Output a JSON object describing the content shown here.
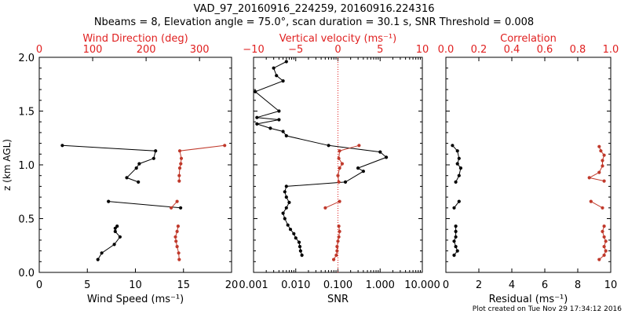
{
  "header": {
    "title_line1": "VAD_97_20160916_224259, 20160916.224316",
    "title_line2": "Nbeams = 8, Elevation angle = 75.0°, scan duration = 30.1 s, SNR Threshold = 0.008"
  },
  "footer": {
    "credit": "Plot created on Tue Nov 29 17:34:12 2016"
  },
  "colors": {
    "black_series": "#000000",
    "red_series": "#c0392b",
    "red_axis": "#e02020"
  },
  "y_axis": {
    "label": "z (km AGL)",
    "range": [
      0,
      2
    ],
    "ticks": [
      "0.0",
      "0.5",
      "1.0",
      "1.5",
      "2.0"
    ]
  },
  "chart_data": [
    {
      "type": "line",
      "bottom_axis": {
        "label": "Wind Speed (ms⁻¹)",
        "range": [
          0,
          20
        ],
        "tick_values": [
          0,
          5,
          10,
          15,
          20
        ],
        "tick_labels": [
          "0",
          "5",
          "10",
          "15",
          "20"
        ]
      },
      "top_axis": {
        "label": "Wind Direction (deg)",
        "range": [
          0,
          360
        ],
        "tick_values": [
          0,
          100,
          200,
          300
        ],
        "tick_labels": [
          "0",
          "100",
          "200",
          "300"
        ]
      },
      "series": [
        {
          "axis": "bottom",
          "color": "black",
          "segments": [
            [
              [
                6.1,
                0.12
              ],
              [
                6.5,
                0.18
              ],
              [
                7.8,
                0.26
              ],
              [
                8.4,
                0.33
              ],
              [
                7.9,
                0.38
              ],
              [
                7.9,
                0.41
              ],
              [
                8.1,
                0.43
              ]
            ],
            [
              [
                7.2,
                0.66
              ],
              [
                14.7,
                0.6
              ]
            ],
            [
              [
                10.3,
                0.84
              ],
              [
                9.1,
                0.88
              ],
              [
                10.1,
                0.97
              ],
              [
                10.4,
                1.01
              ],
              [
                11.9,
                1.06
              ],
              [
                12.1,
                1.13
              ],
              [
                2.4,
                1.18
              ]
            ]
          ]
        },
        {
          "axis": "top",
          "color": "red",
          "segments": [
            [
              [
                262,
                0.12
              ],
              [
                261,
                0.18
              ],
              [
                258,
                0.24
              ],
              [
                256,
                0.29
              ],
              [
                255,
                0.33
              ],
              [
                258,
                0.38
              ],
              [
                260,
                0.43
              ]
            ],
            [
              [
                247,
                0.6
              ],
              [
                258,
                0.66
              ]
            ],
            [
              [
                262,
                0.85
              ],
              [
                262,
                0.9
              ],
              [
                263,
                0.97
              ],
              [
                265,
                1.01
              ],
              [
                266,
                1.06
              ],
              [
                263,
                1.13
              ],
              [
                347,
                1.18
              ]
            ]
          ]
        }
      ]
    },
    {
      "type": "line",
      "bottom_axis": {
        "label": "SNR",
        "scale": "log",
        "range": [
          0.001,
          10
        ],
        "tick_values": [
          0.001,
          0.01,
          0.1,
          1,
          10
        ],
        "tick_labels": [
          "0.001",
          "0.010",
          "0.100",
          "1.000",
          "10.000"
        ]
      },
      "top_axis": {
        "label": "Vertical velocity (ms⁻¹)",
        "range": [
          -10,
          10
        ],
        "tick_values": [
          -10,
          -5,
          0,
          5,
          10
        ],
        "tick_labels": [
          "−10",
          "−5",
          "0",
          "5",
          "10"
        ]
      },
      "reference_line": {
        "axis": "top",
        "value": 0,
        "style": "dotted"
      },
      "series": [
        {
          "axis": "bottom",
          "color": "black",
          "points": [
            [
              0.014,
              0.16
            ],
            [
              0.013,
              0.2
            ],
            [
              0.0125,
              0.24
            ],
            [
              0.012,
              0.28
            ],
            [
              0.01,
              0.32
            ],
            [
              0.009,
              0.36
            ],
            [
              0.0075,
              0.4
            ],
            [
              0.0065,
              0.44
            ],
            [
              0.0055,
              0.5
            ],
            [
              0.005,
              0.55
            ],
            [
              0.006,
              0.6
            ],
            [
              0.007,
              0.65
            ],
            [
              0.006,
              0.7
            ],
            [
              0.0055,
              0.75
            ],
            [
              0.006,
              0.8
            ],
            [
              0.15,
              0.84
            ],
            [
              0.4,
              0.94
            ],
            [
              0.3,
              0.97
            ],
            [
              1.4,
              1.07
            ],
            [
              1.0,
              1.12
            ],
            [
              0.06,
              1.18
            ],
            [
              0.006,
              1.27
            ],
            [
              0.005,
              1.31
            ],
            [
              0.0025,
              1.34
            ],
            [
              0.0012,
              1.38
            ],
            [
              0.004,
              1.42
            ],
            [
              0.0012,
              1.44
            ],
            [
              0.004,
              1.5
            ],
            [
              0.0011,
              1.68
            ],
            [
              0.005,
              1.78
            ],
            [
              0.0035,
              1.83
            ],
            [
              0.003,
              1.9
            ],
            [
              0.006,
              1.96
            ]
          ]
        },
        {
          "axis": "top",
          "color": "red",
          "segments": [
            [
              [
                -0.5,
                0.12
              ],
              [
                -0.2,
                0.16
              ],
              [
                -0.1,
                0.2
              ],
              [
                -0.1,
                0.24
              ],
              [
                0.0,
                0.29
              ],
              [
                0.1,
                0.33
              ],
              [
                0.2,
                0.38
              ],
              [
                0.1,
                0.43
              ]
            ],
            [
              [
                -1.5,
                0.6
              ],
              [
                0.2,
                0.66
              ]
            ],
            [
              [
                0.1,
                0.84
              ],
              [
                0.0,
                0.9
              ],
              [
                0.2,
                0.97
              ],
              [
                0.5,
                1.01
              ],
              [
                0.1,
                1.06
              ],
              [
                0.2,
                1.13
              ],
              [
                2.5,
                1.18
              ]
            ]
          ]
        }
      ]
    },
    {
      "type": "line",
      "bottom_axis": {
        "label": "Residual (ms⁻¹)",
        "range": [
          0,
          10
        ],
        "tick_values": [
          0,
          2,
          4,
          6,
          8,
          10
        ],
        "tick_labels": [
          "0",
          "2",
          "4",
          "6",
          "8",
          "10"
        ]
      },
      "top_axis": {
        "label": "Correlation",
        "range": [
          0,
          1
        ],
        "tick_values": [
          0,
          0.2,
          0.4,
          0.6,
          0.8,
          1.0
        ],
        "tick_labels": [
          "0.0",
          "0.2",
          "0.4",
          "0.6",
          "0.8",
          "1.0"
        ]
      },
      "series": [
        {
          "axis": "bottom",
          "color": "black",
          "segments": [
            [
              [
                0.5,
                0.16
              ],
              [
                0.7,
                0.2
              ],
              [
                0.6,
                0.24
              ],
              [
                0.5,
                0.29
              ],
              [
                0.6,
                0.33
              ],
              [
                0.6,
                0.38
              ],
              [
                0.6,
                0.43
              ]
            ],
            [
              [
                0.5,
                0.6
              ],
              [
                0.8,
                0.66
              ]
            ],
            [
              [
                0.6,
                0.84
              ],
              [
                0.8,
                0.9
              ],
              [
                0.9,
                0.97
              ],
              [
                0.7,
                1.01
              ],
              [
                0.8,
                1.06
              ],
              [
                0.7,
                1.13
              ],
              [
                0.4,
                1.18
              ]
            ]
          ]
        },
        {
          "axis": "top",
          "color": "red",
          "segments": [
            [
              [
                0.93,
                0.12
              ],
              [
                0.96,
                0.16
              ],
              [
                0.97,
                0.2
              ],
              [
                0.96,
                0.24
              ],
              [
                0.97,
                0.29
              ],
              [
                0.96,
                0.33
              ],
              [
                0.95,
                0.38
              ],
              [
                0.96,
                0.43
              ]
            ],
            [
              [
                0.95,
                0.6
              ],
              [
                0.88,
                0.66
              ]
            ],
            [
              [
                0.96,
                0.85
              ],
              [
                0.87,
                0.88
              ],
              [
                0.93,
                0.93
              ],
              [
                0.95,
                0.99
              ],
              [
                0.95,
                1.04
              ],
              [
                0.96,
                1.09
              ],
              [
                0.94,
                1.13
              ],
              [
                0.93,
                1.17
              ]
            ]
          ]
        }
      ]
    }
  ]
}
